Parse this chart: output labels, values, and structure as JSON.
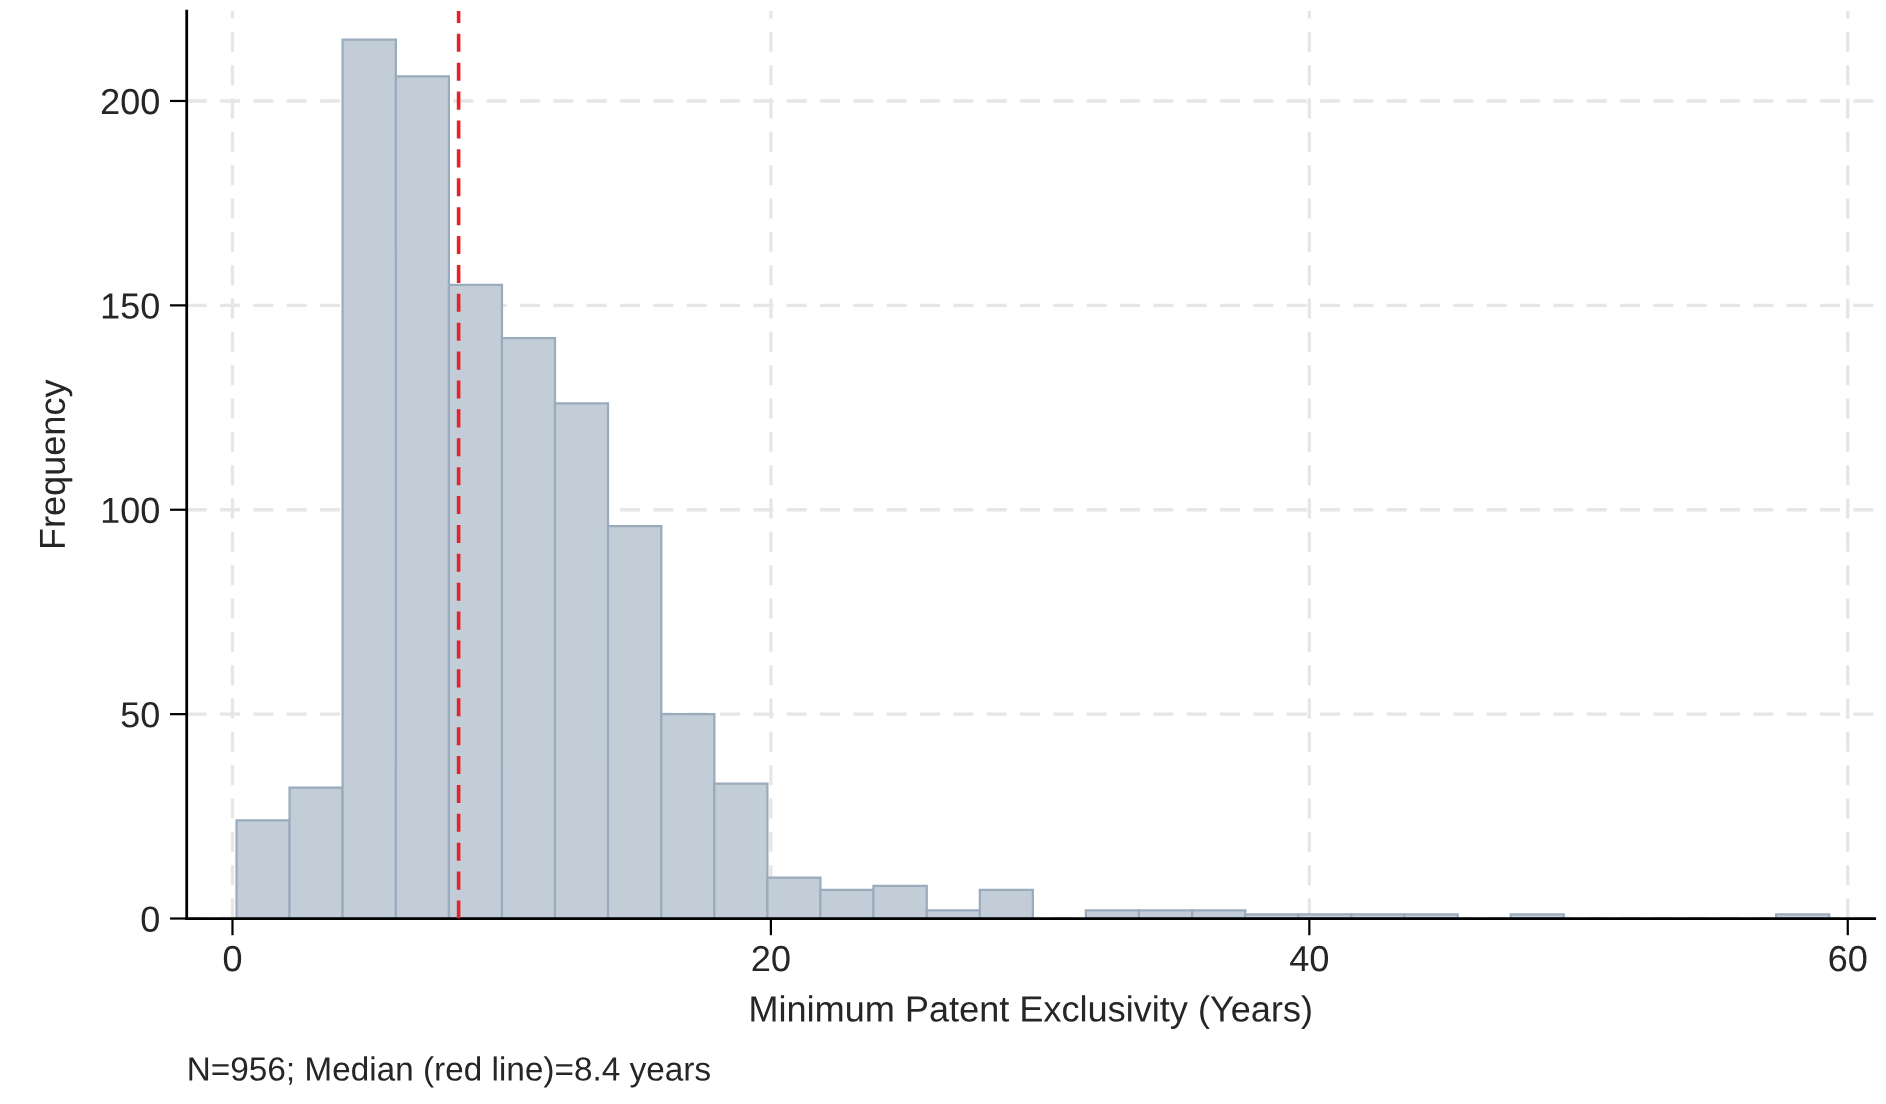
{
  "chart_data": {
    "type": "histogram",
    "xlabel": "Minimum Patent Exclusivity (Years)",
    "ylabel": "Frequency",
    "bins": [
      0.15,
      2.12,
      4.09,
      6.07,
      8.04,
      10.01,
      11.98,
      13.95,
      15.93,
      17.9,
      19.87,
      21.84,
      23.81,
      25.79,
      27.76,
      29.73,
      31.7,
      33.67,
      35.65,
      37.62,
      39.59,
      41.56,
      43.53,
      45.51,
      47.48,
      49.45,
      51.42,
      53.39,
      55.37,
      57.34,
      59.31
    ],
    "values": [
      24,
      32,
      215,
      206,
      155,
      142,
      126,
      96,
      50,
      33,
      10,
      7,
      8,
      2,
      7,
      0,
      2,
      2,
      2,
      1,
      1,
      1,
      1,
      0,
      1,
      0,
      0,
      0,
      0,
      1
    ],
    "color": "#c3cdd8",
    "xlim": [
      -1.7,
      61
    ],
    "ylim": [
      0,
      222
    ],
    "xticks": [
      0,
      20,
      40,
      60
    ],
    "yticks": [
      0,
      50,
      100,
      150,
      200
    ],
    "grid": true,
    "ref_lines": [
      {
        "axis": "x",
        "value": 8.4,
        "color": "#e8202a",
        "line_style": "dashed"
      }
    ],
    "annotations": [
      "N=956; Median (red line)=8.4 years"
    ]
  }
}
